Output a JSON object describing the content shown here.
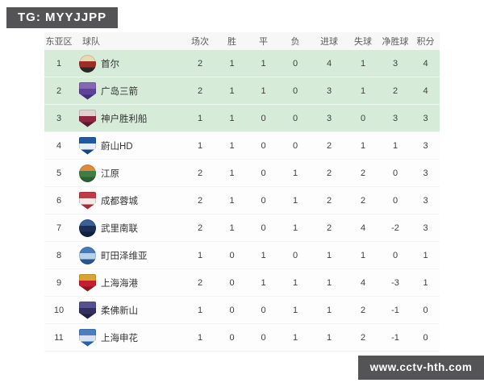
{
  "watermarks": {
    "top_left": "TG: MYYJJPP",
    "bottom_right": "www.cctv-hth.com",
    "badge_color": "#545456"
  },
  "table": {
    "headers": [
      "东亚区",
      "球队",
      "场次",
      "胜",
      "平",
      "负",
      "进球",
      "失球",
      "净胜球",
      "积分"
    ],
    "highlight_color": "#d6ecd9",
    "rows": [
      {
        "rank": "1",
        "team": "首尔",
        "played": "2",
        "win": "1",
        "draw": "1",
        "loss": "0",
        "gf": "4",
        "ga": "1",
        "gd": "3",
        "pts": "4",
        "highlighted": true,
        "logo_shape": "circle",
        "logo_colors": [
          "#ead9b5",
          "#a02c28",
          "#2e2723"
        ]
      },
      {
        "rank": "2",
        "team": "广岛三箭",
        "played": "2",
        "win": "1",
        "draw": "1",
        "loss": "0",
        "gf": "3",
        "ga": "1",
        "gd": "2",
        "pts": "4",
        "highlighted": true,
        "logo_shape": "shield",
        "logo_colors": [
          "#8468b4",
          "#5f4398",
          "#46307c"
        ]
      },
      {
        "rank": "3",
        "team": "神户胜利船",
        "played": "1",
        "win": "1",
        "draw": "0",
        "loss": "0",
        "gf": "3",
        "ga": "0",
        "gd": "3",
        "pts": "3",
        "highlighted": true,
        "logo_shape": "shield",
        "logo_colors": [
          "#ddd3cf",
          "#8f2640",
          "#5c1a2e"
        ]
      },
      {
        "rank": "4",
        "team": "蔚山HD",
        "played": "1",
        "win": "1",
        "draw": "0",
        "loss": "0",
        "gf": "2",
        "ga": "1",
        "gd": "1",
        "pts": "3",
        "highlighted": false,
        "logo_shape": "shield",
        "logo_colors": [
          "#2257a5",
          "#e8eef8",
          "#1a4488"
        ]
      },
      {
        "rank": "5",
        "team": "江原",
        "played": "2",
        "win": "1",
        "draw": "0",
        "loss": "1",
        "gf": "2",
        "ga": "2",
        "gd": "0",
        "pts": "3",
        "highlighted": false,
        "logo_shape": "circle",
        "logo_colors": [
          "#e08a3c",
          "#3f7d44",
          "#2e5f35"
        ]
      },
      {
        "rank": "6",
        "team": "成都蓉城",
        "played": "2",
        "win": "1",
        "draw": "0",
        "loss": "1",
        "gf": "2",
        "ga": "2",
        "gd": "0",
        "pts": "3",
        "highlighted": false,
        "logo_shape": "shield",
        "logo_colors": [
          "#c23a46",
          "#f3e8e6",
          "#a62b38"
        ]
      },
      {
        "rank": "7",
        "team": "武里南联",
        "played": "2",
        "win": "1",
        "draw": "0",
        "loss": "1",
        "gf": "2",
        "ga": "4",
        "gd": "-2",
        "pts": "3",
        "highlighted": false,
        "logo_shape": "circle",
        "logo_colors": [
          "#3c5f96",
          "#1c2f58",
          "#12203f"
        ]
      },
      {
        "rank": "8",
        "team": "町田泽维亚",
        "played": "1",
        "win": "0",
        "draw": "1",
        "loss": "0",
        "gf": "1",
        "ga": "1",
        "gd": "0",
        "pts": "1",
        "highlighted": false,
        "logo_shape": "circle",
        "logo_colors": [
          "#4a79b8",
          "#b8d2ea",
          "#2a5492"
        ]
      },
      {
        "rank": "9",
        "team": "上海海港",
        "played": "2",
        "win": "0",
        "draw": "1",
        "loss": "1",
        "gf": "1",
        "ga": "4",
        "gd": "-3",
        "pts": "1",
        "highlighted": false,
        "logo_shape": "shield",
        "logo_colors": [
          "#d9a433",
          "#c41e30",
          "#911624"
        ]
      },
      {
        "rank": "10",
        "team": "柔佛新山",
        "played": "1",
        "win": "0",
        "draw": "0",
        "loss": "1",
        "gf": "1",
        "ga": "2",
        "gd": "-1",
        "pts": "0",
        "highlighted": false,
        "logo_shape": "shield",
        "logo_colors": [
          "#56528e",
          "#312e62",
          "#201e44"
        ]
      },
      {
        "rank": "11",
        "team": "上海申花",
        "played": "1",
        "win": "0",
        "draw": "0",
        "loss": "1",
        "gf": "1",
        "ga": "2",
        "gd": "-1",
        "pts": "0",
        "highlighted": false,
        "logo_shape": "shield",
        "logo_colors": [
          "#4a7ec0",
          "#d8e2ee",
          "#2a5ca8"
        ]
      }
    ]
  }
}
